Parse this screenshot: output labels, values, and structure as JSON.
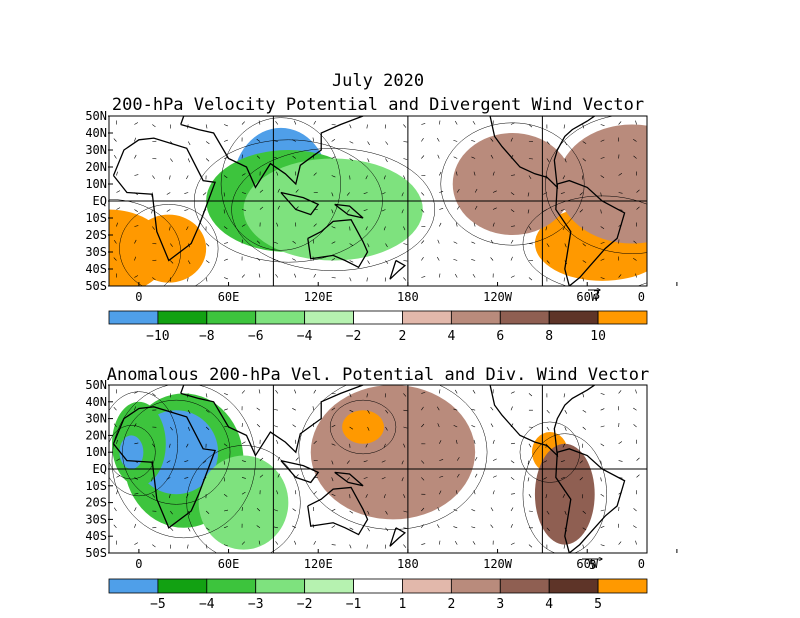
{
  "figure": {
    "title": "July 2020",
    "colors": {
      "c_neg5": "#4f9fe9",
      "c_neg4": "#12a112",
      "c_neg3": "#3dc43d",
      "c_neg2": "#7ee27e",
      "c_neg1": "#b6f2b0",
      "c_zero": "#ffffff",
      "c_pos1": "#e2b8ab",
      "c_pos2": "#b98b7c",
      "c_pos3": "#8f5f52",
      "c_pos4": "#5e3428",
      "c_pos5": "#ff9900"
    }
  },
  "panels": [
    {
      "id": "top",
      "title": "200-hPa Velocity Potential and Divergent Wind Vector",
      "lat_labels": [
        "50N",
        "40N",
        "30N",
        "20N",
        "10N",
        "EQ",
        "10S",
        "20S",
        "30S",
        "40S",
        "50S"
      ],
      "lon_labels": [
        "0",
        "60E",
        "120E",
        "180",
        "120W",
        "60W",
        "0"
      ],
      "vector_ref": "3",
      "colorbar_labels": [
        "−10",
        "−8",
        "−6",
        "−4",
        "−2",
        "2",
        "4",
        "6",
        "8",
        "10"
      ],
      "regions": [
        {
          "name": "asia-negative-core",
          "color_key": "c_neg5",
          "lon": 95,
          "lat": 10,
          "rx": 32,
          "ry": 33
        },
        {
          "name": "indian-ocean-green",
          "color_key": "c_neg3",
          "lon": 100,
          "lat": 0,
          "rx": 55,
          "ry": 30
        },
        {
          "name": "pacific-green-outer",
          "color_key": "c_neg2",
          "lon": 130,
          "lat": -5,
          "rx": 60,
          "ry": 30
        },
        {
          "name": "south-america-positive",
          "color_key": "c_pos5",
          "lon": -50,
          "lat": -25,
          "rx": 45,
          "ry": 22
        },
        {
          "name": "south-atlantic-positive",
          "color_key": "c_pos5",
          "lon": -20,
          "lat": -30,
          "rx": 40,
          "ry": 25
        },
        {
          "name": "africa-south-positive",
          "color_key": "c_pos5",
          "lon": 20,
          "lat": -28,
          "rx": 25,
          "ry": 20
        },
        {
          "name": "east-pacific-brown",
          "color_key": "c_pos2",
          "lon": -110,
          "lat": 10,
          "rx": 40,
          "ry": 30
        },
        {
          "name": "atlantic-brown",
          "color_key": "c_pos2",
          "lon": -30,
          "lat": 10,
          "rx": 50,
          "ry": 35
        }
      ]
    },
    {
      "id": "bottom",
      "title": "Anomalous 200-hPa Vel. Potential and Div. Wind Vector",
      "lat_labels": [
        "50N",
        "40N",
        "30N",
        "20N",
        "10N",
        "EQ",
        "10S",
        "20S",
        "30S",
        "40S",
        "50S"
      ],
      "lon_labels": [
        "0",
        "60E",
        "120E",
        "180",
        "120W",
        "60W",
        "0"
      ],
      "vector_ref": "5",
      "colorbar_labels": [
        "−5",
        "−4",
        "−3",
        "−2",
        "−1",
        "1",
        "2",
        "3",
        "4",
        "5"
      ],
      "regions": [
        {
          "name": "africa-negative-green",
          "color_key": "c_neg3",
          "lon": 30,
          "lat": 5,
          "rx": 40,
          "ry": 40
        },
        {
          "name": "africa-negative-core",
          "color_key": "c_neg5",
          "lon": 25,
          "lat": 10,
          "rx": 28,
          "ry": 25
        },
        {
          "name": "indian-ocean-light-green",
          "color_key": "c_neg2",
          "lon": 70,
          "lat": -20,
          "rx": 30,
          "ry": 28
        },
        {
          "name": "pacific-brown",
          "color_key": "c_pos2",
          "lon": 170,
          "lat": 10,
          "rx": 55,
          "ry": 40
        },
        {
          "name": "pacific-positive-core",
          "color_key": "c_pos5",
          "lon": 150,
          "lat": 25,
          "rx": 14,
          "ry": 10
        },
        {
          "name": "central-america-positive",
          "color_key": "c_pos5",
          "lon": -85,
          "lat": 10,
          "rx": 12,
          "ry": 12
        },
        {
          "name": "south-america-brown",
          "color_key": "c_pos3",
          "lon": -75,
          "lat": -15,
          "rx": 20,
          "ry": 30
        },
        {
          "name": "atlantic-green",
          "color_key": "c_neg3",
          "lon": 0,
          "lat": 15,
          "rx": 18,
          "ry": 25
        },
        {
          "name": "atlantic-core",
          "color_key": "c_neg5",
          "lon": -5,
          "lat": 10,
          "rx": 8,
          "ry": 10
        }
      ]
    }
  ]
}
